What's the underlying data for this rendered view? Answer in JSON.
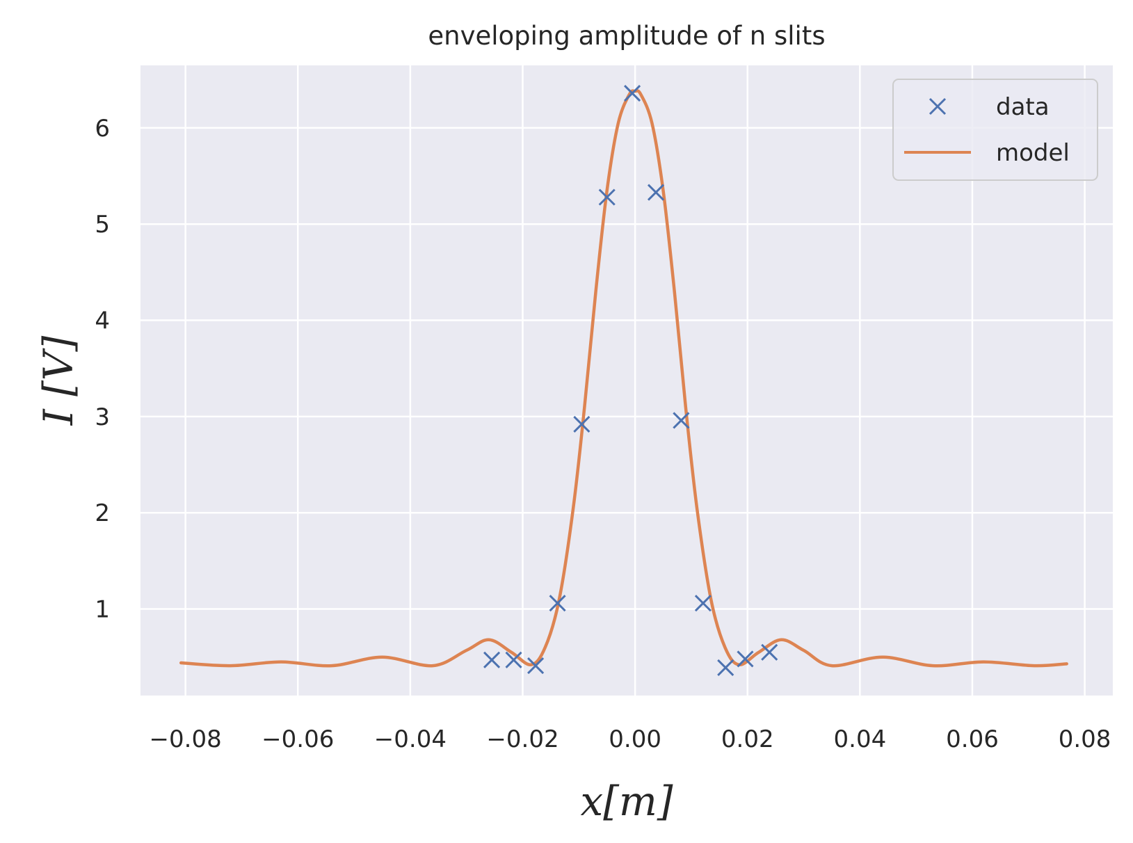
{
  "chart_data": {
    "type": "scatter",
    "title": "enveloping amplitude of n slits",
    "xlabel": "x[m]",
    "ylabel": "I [V]",
    "xlim": [
      -0.088,
      0.085
    ],
    "ylim": [
      0.1,
      6.65
    ],
    "xticks": [
      -0.08,
      -0.06,
      -0.04,
      -0.02,
      0.0,
      0.02,
      0.04,
      0.06,
      0.08
    ],
    "xtick_labels": [
      "−0.08",
      "−0.06",
      "−0.04",
      "−0.02",
      "0.00",
      "0.02",
      "0.04",
      "0.06",
      "0.08"
    ],
    "yticks": [
      1,
      2,
      3,
      4,
      5,
      6
    ],
    "ytick_labels": [
      "1",
      "2",
      "3",
      "4",
      "5",
      "6"
    ],
    "grid": true,
    "legend_position": "top-right",
    "series": [
      {
        "name": "data",
        "style": "markers",
        "marker": "x",
        "color": "#4c72b0",
        "x": [
          -0.0255,
          -0.0216,
          -0.0177,
          -0.0138,
          -0.0095,
          -0.005,
          -0.0005,
          0.0037,
          0.0082,
          0.0121,
          0.0161,
          0.0196,
          0.0239
        ],
        "y": [
          0.47,
          0.47,
          0.41,
          1.06,
          2.92,
          5.28,
          6.36,
          5.33,
          2.96,
          1.06,
          0.39,
          0.48,
          0.55
        ]
      },
      {
        "name": "model",
        "style": "line",
        "color": "#dd8452",
        "x": [
          -0.0808,
          -0.072,
          -0.063,
          -0.054,
          -0.045,
          -0.036,
          -0.03,
          -0.026,
          -0.022,
          -0.0185,
          -0.016,
          -0.0135,
          -0.011,
          -0.009,
          -0.007,
          -0.005,
          -0.003,
          -0.001,
          0.0,
          0.001,
          0.003,
          0.005,
          0.007,
          0.009,
          0.011,
          0.0135,
          0.016,
          0.0185,
          0.022,
          0.026,
          0.03,
          0.035,
          0.044,
          0.053,
          0.062,
          0.071,
          0.0768
        ],
        "y": [
          0.44,
          0.41,
          0.45,
          0.41,
          0.5,
          0.41,
          0.57,
          0.68,
          0.55,
          0.42,
          0.6,
          1.1,
          2.05,
          3.1,
          4.3,
          5.35,
          6.05,
          6.35,
          6.38,
          6.35,
          6.05,
          5.35,
          4.3,
          3.1,
          2.05,
          1.1,
          0.6,
          0.42,
          0.55,
          0.68,
          0.57,
          0.41,
          0.5,
          0.41,
          0.45,
          0.41,
          0.43
        ]
      }
    ]
  },
  "colors": {
    "background": "#eaeaf2",
    "grid": "#ffffff",
    "text": "#262626"
  }
}
